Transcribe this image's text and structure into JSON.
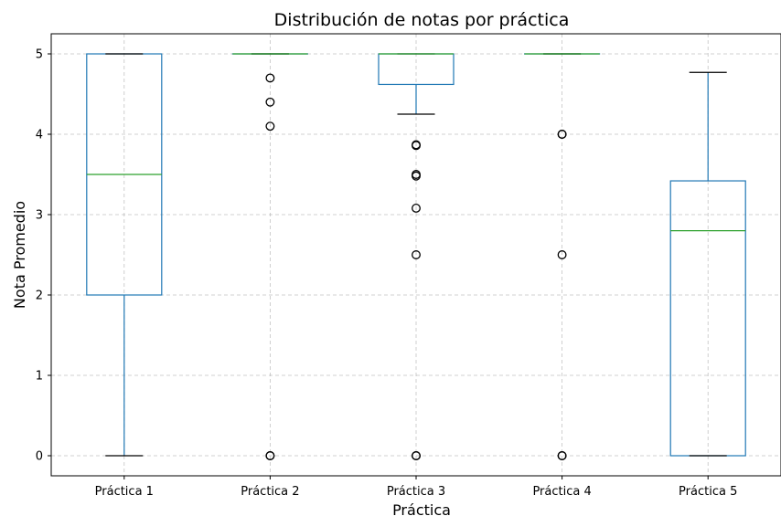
{
  "chart_data": {
    "type": "box",
    "title": "Distribución de notas por práctica",
    "xlabel": "Práctica",
    "ylabel": "Nota Promedio",
    "ylim": [
      -0.25,
      5.25
    ],
    "yticks": [
      0,
      1,
      2,
      3,
      4,
      5
    ],
    "grid": true,
    "colors": {
      "box": "#1f77b4",
      "median": "#2ca02c",
      "whisker_cap": "#000000",
      "outlier": "#000000",
      "grid": "#b0b0b0"
    },
    "categories": [
      "Práctica 1",
      "Práctica 2",
      "Práctica 3",
      "Práctica 4",
      "Práctica 5"
    ],
    "boxes": [
      {
        "category": "Práctica 1",
        "whisker_low": 0.0,
        "q1": 2.0,
        "median": 3.5,
        "q3": 5.0,
        "whisker_high": 5.0,
        "outliers": []
      },
      {
        "category": "Práctica 2",
        "whisker_low": 5.0,
        "q1": 5.0,
        "median": 5.0,
        "q3": 5.0,
        "whisker_high": 5.0,
        "outliers": [
          4.7,
          4.4,
          4.1,
          0.0,
          0.0
        ]
      },
      {
        "category": "Práctica 3",
        "whisker_low": 4.25,
        "q1": 4.62,
        "median": 5.0,
        "q3": 5.0,
        "whisker_high": 5.0,
        "outliers": [
          3.87,
          3.86,
          3.5,
          3.48,
          3.08,
          2.5,
          0.0,
          0.0
        ]
      },
      {
        "category": "Práctica 4",
        "whisker_low": 5.0,
        "q1": 5.0,
        "median": 5.0,
        "q3": 5.0,
        "whisker_high": 5.0,
        "outliers": [
          4.0,
          4.0,
          2.5,
          0.0,
          0.0
        ]
      },
      {
        "category": "Práctica 5",
        "whisker_low": 0.0,
        "q1": 0.0,
        "median": 2.8,
        "q3": 3.42,
        "whisker_high": 4.77,
        "outliers": []
      }
    ]
  }
}
